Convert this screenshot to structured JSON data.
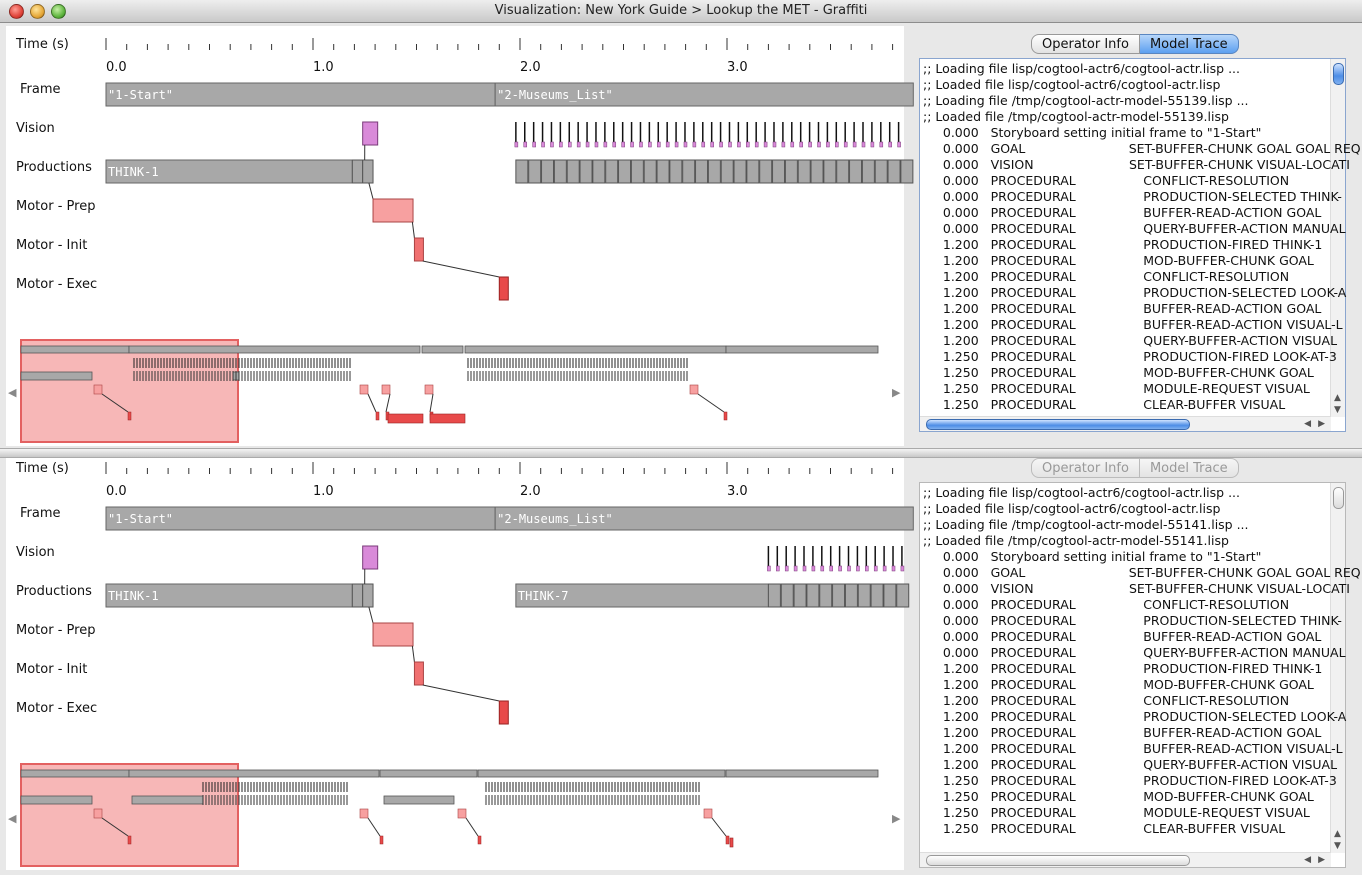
{
  "window": {
    "title": "Visualization: New York Guide > Lookup the MET - Graffiti"
  },
  "colors": {
    "bar_gray": "#a8a8a8",
    "vision": "#d98ad9",
    "motor": "#f7a0a0",
    "motor_dark": "#e84a4a",
    "overview_sel": "#f7b0b0"
  },
  "top": {
    "lanes": {
      "time": "Time (s)",
      "frame": "Frame",
      "vision": "Vision",
      "productions": "Productions",
      "motor_prep": "Motor - Prep",
      "motor_init": "Motor - Init",
      "motor_exec": "Motor - Exec"
    },
    "ticks": [
      "0.0",
      "1.0",
      "2.0",
      "3.0"
    ],
    "frames": [
      "\"1-Start\"",
      "\"2-Museums_List\""
    ],
    "productions": [
      "THINK-1"
    ],
    "tabs": {
      "operator_info": "Operator Info",
      "model_trace": "Model Trace"
    },
    "trace": [
      ";; Loading file lisp/cogtool-actr6/cogtool-actr.lisp ...",
      ";; Loaded file lisp/cogtool-actr6/cogtool-actr.lisp",
      ";; Loading file /tmp/cogtool-actr-model-55139.lisp ...",
      ";; Loaded file /tmp/cogtool-actr-model-55139.lisp",
      "     0.000   Storyboard setting initial frame to \"1-Start\"",
      "     0.000   GOAL                          SET-BUFFER-CHUNK GOAL GOAL REQ",
      "     0.000   VISION                        SET-BUFFER-CHUNK VISUAL-LOCATI",
      "     0.000   PROCEDURAL                 CONFLICT-RESOLUTION",
      "     0.000   PROCEDURAL                 PRODUCTION-SELECTED THINK-",
      "     0.000   PROCEDURAL                 BUFFER-READ-ACTION GOAL",
      "     0.000   PROCEDURAL                 QUERY-BUFFER-ACTION MANUAL",
      "     1.200   PROCEDURAL                 PRODUCTION-FIRED THINK-1",
      "     1.200   PROCEDURAL                 MOD-BUFFER-CHUNK GOAL",
      "     1.200   PROCEDURAL                 CONFLICT-RESOLUTION",
      "     1.200   PROCEDURAL                 PRODUCTION-SELECTED LOOK-A",
      "     1.200   PROCEDURAL                 BUFFER-READ-ACTION GOAL",
      "     1.200   PROCEDURAL                 BUFFER-READ-ACTION VISUAL-L",
      "     1.200   PROCEDURAL                 QUERY-BUFFER-ACTION VISUAL",
      "     1.250   PROCEDURAL                 PRODUCTION-FIRED LOOK-AT-3",
      "     1.250   PROCEDURAL                 MOD-BUFFER-CHUNK GOAL",
      "     1.250   PROCEDURAL                 MODULE-REQUEST VISUAL",
      "     1.250   PROCEDURAL                 CLEAR-BUFFER VISUAL"
    ]
  },
  "bottom": {
    "lanes": {
      "time": "Time (s)",
      "frame": "Frame",
      "vision": "Vision",
      "productions": "Productions",
      "motor_prep": "Motor - Prep",
      "motor_init": "Motor - Init",
      "motor_exec": "Motor - Exec"
    },
    "ticks": [
      "0.0",
      "1.0",
      "2.0",
      "3.0"
    ],
    "frames": [
      "\"1-Start\"",
      "\"2-Museums_List\""
    ],
    "productions": [
      "THINK-1",
      "THINK-7"
    ],
    "tabs": {
      "operator_info": "Operator Info",
      "model_trace": "Model Trace"
    },
    "trace": [
      ";; Loading file lisp/cogtool-actr6/cogtool-actr.lisp ...",
      ";; Loaded file lisp/cogtool-actr6/cogtool-actr.lisp",
      ";; Loading file /tmp/cogtool-actr-model-55141.lisp ...",
      ";; Loaded file /tmp/cogtool-actr-model-55141.lisp",
      "     0.000   Storyboard setting initial frame to \"1-Start\"",
      "     0.000   GOAL                          SET-BUFFER-CHUNK GOAL GOAL REQ",
      "     0.000   VISION                        SET-BUFFER-CHUNK VISUAL-LOCATI",
      "     0.000   PROCEDURAL                 CONFLICT-RESOLUTION",
      "     0.000   PROCEDURAL                 PRODUCTION-SELECTED THINK-",
      "     0.000   PROCEDURAL                 BUFFER-READ-ACTION GOAL",
      "     0.000   PROCEDURAL                 QUERY-BUFFER-ACTION MANUAL",
      "     1.200   PROCEDURAL                 PRODUCTION-FIRED THINK-1",
      "     1.200   PROCEDURAL                 MOD-BUFFER-CHUNK GOAL",
      "     1.200   PROCEDURAL                 CONFLICT-RESOLUTION",
      "     1.200   PROCEDURAL                 PRODUCTION-SELECTED LOOK-A",
      "     1.200   PROCEDURAL                 BUFFER-READ-ACTION GOAL",
      "     1.200   PROCEDURAL                 BUFFER-READ-ACTION VISUAL-L",
      "     1.200   PROCEDURAL                 QUERY-BUFFER-ACTION VISUAL",
      "     1.250   PROCEDURAL                 PRODUCTION-FIRED LOOK-AT-3",
      "     1.250   PROCEDURAL                 MOD-BUFFER-CHUNK GOAL",
      "     1.250   PROCEDURAL                 MODULE-REQUEST VISUAL",
      "     1.250   PROCEDURAL                 CLEAR-BUFFER VISUAL"
    ]
  }
}
